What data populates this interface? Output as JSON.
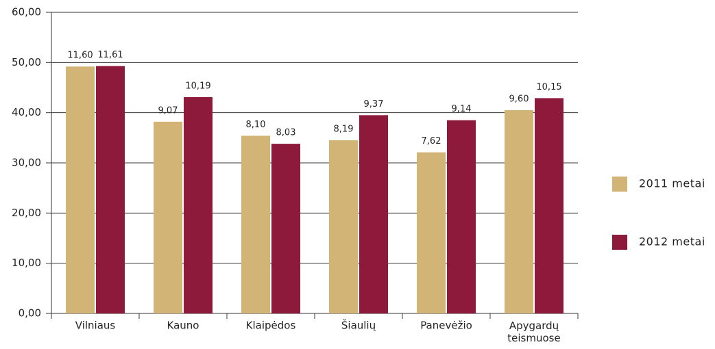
{
  "chart_data": {
    "type": "bar",
    "categories": [
      "Vilniaus",
      "Kauno",
      "Klaipėdos",
      "Šiaulių",
      "Panevėžio",
      "Apygardų\nteismuose"
    ],
    "series": [
      {
        "name": "2011 metai",
        "color": "#d3b477",
        "values": [
          49.2,
          38.2,
          35.4,
          34.5,
          32.1,
          40.5
        ],
        "labels": [
          "11,60",
          "9,07",
          "8,10",
          "8,19",
          "7,62",
          "9,60"
        ]
      },
      {
        "name": "2012 metai",
        "color": "#8e1a3b",
        "values": [
          49.3,
          43.1,
          33.8,
          39.5,
          38.5,
          42.9
        ],
        "labels": [
          "11,61",
          "10,19",
          "8,03",
          "9,37",
          "9,14",
          "10,15"
        ]
      }
    ],
    "ylim": [
      0,
      60
    ],
    "yticks": [
      {
        "value": 0,
        "label": "0,00"
      },
      {
        "value": 10,
        "label": "10,00"
      },
      {
        "value": 20,
        "label": "20,00"
      },
      {
        "value": 30,
        "label": "30,00"
      },
      {
        "value": 40,
        "label": "40,00"
      },
      {
        "value": 50,
        "label": "50,00"
      },
      {
        "value": 60,
        "label": "60,00"
      }
    ],
    "grid": true,
    "legend": "right"
  }
}
